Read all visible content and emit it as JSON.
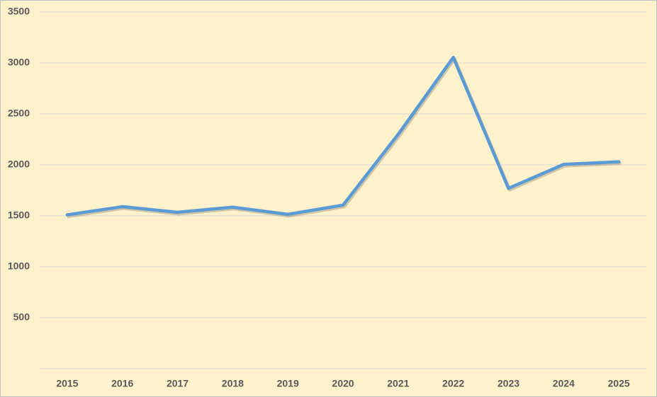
{
  "chart_data": {
    "type": "line",
    "categories": [
      "2015",
      "2016",
      "2017",
      "2018",
      "2019",
      "2020",
      "2021",
      "2022",
      "2023",
      "2024",
      "2025"
    ],
    "values": [
      1510,
      1590,
      1535,
      1585,
      1515,
      1605,
      2300,
      3055,
      1770,
      2005,
      2030
    ],
    "color": "#5b9bd5",
    "ylim": [
      0,
      3500
    ],
    "yticks": [
      500,
      1000,
      1500,
      2000,
      2500,
      3000,
      3500
    ],
    "grid": true
  }
}
